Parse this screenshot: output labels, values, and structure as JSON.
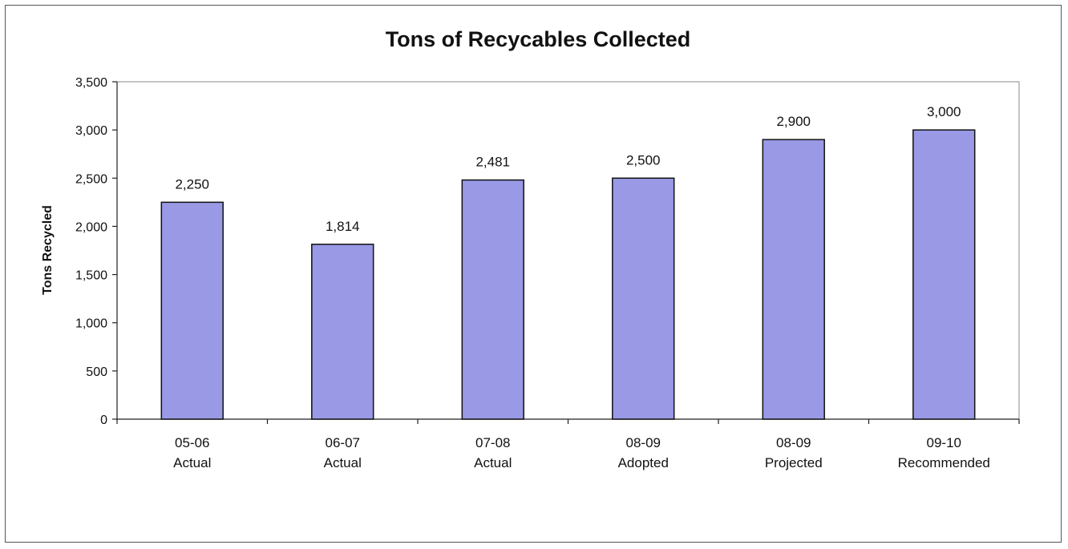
{
  "chart_data": {
    "type": "bar",
    "title": "Tons of Recycables Collected",
    "xlabel": "",
    "ylabel": "Tons Recycled",
    "ylim": [
      0,
      3500
    ],
    "yticks": [
      0,
      500,
      1000,
      1500,
      2000,
      2500,
      3000,
      3500
    ],
    "ytick_labels": [
      "0",
      "500",
      "1,000",
      "1,500",
      "2,000",
      "2,500",
      "3,000",
      "3,500"
    ],
    "categories": [
      [
        "05-06",
        "Actual"
      ],
      [
        "06-07",
        "Actual"
      ],
      [
        "07-08",
        "Actual"
      ],
      [
        "08-09",
        "Adopted"
      ],
      [
        "08-09",
        "Projected"
      ],
      [
        "09-10",
        "Recommended"
      ]
    ],
    "values": [
      2250,
      1814,
      2481,
      2500,
      2900,
      3000
    ],
    "value_labels": [
      "2,250",
      "1,814",
      "2,481",
      "2,500",
      "2,900",
      "3,000"
    ],
    "bar_color": "#9999e6",
    "bar_edge_color": "#111111",
    "grid": false,
    "legend": "none"
  }
}
